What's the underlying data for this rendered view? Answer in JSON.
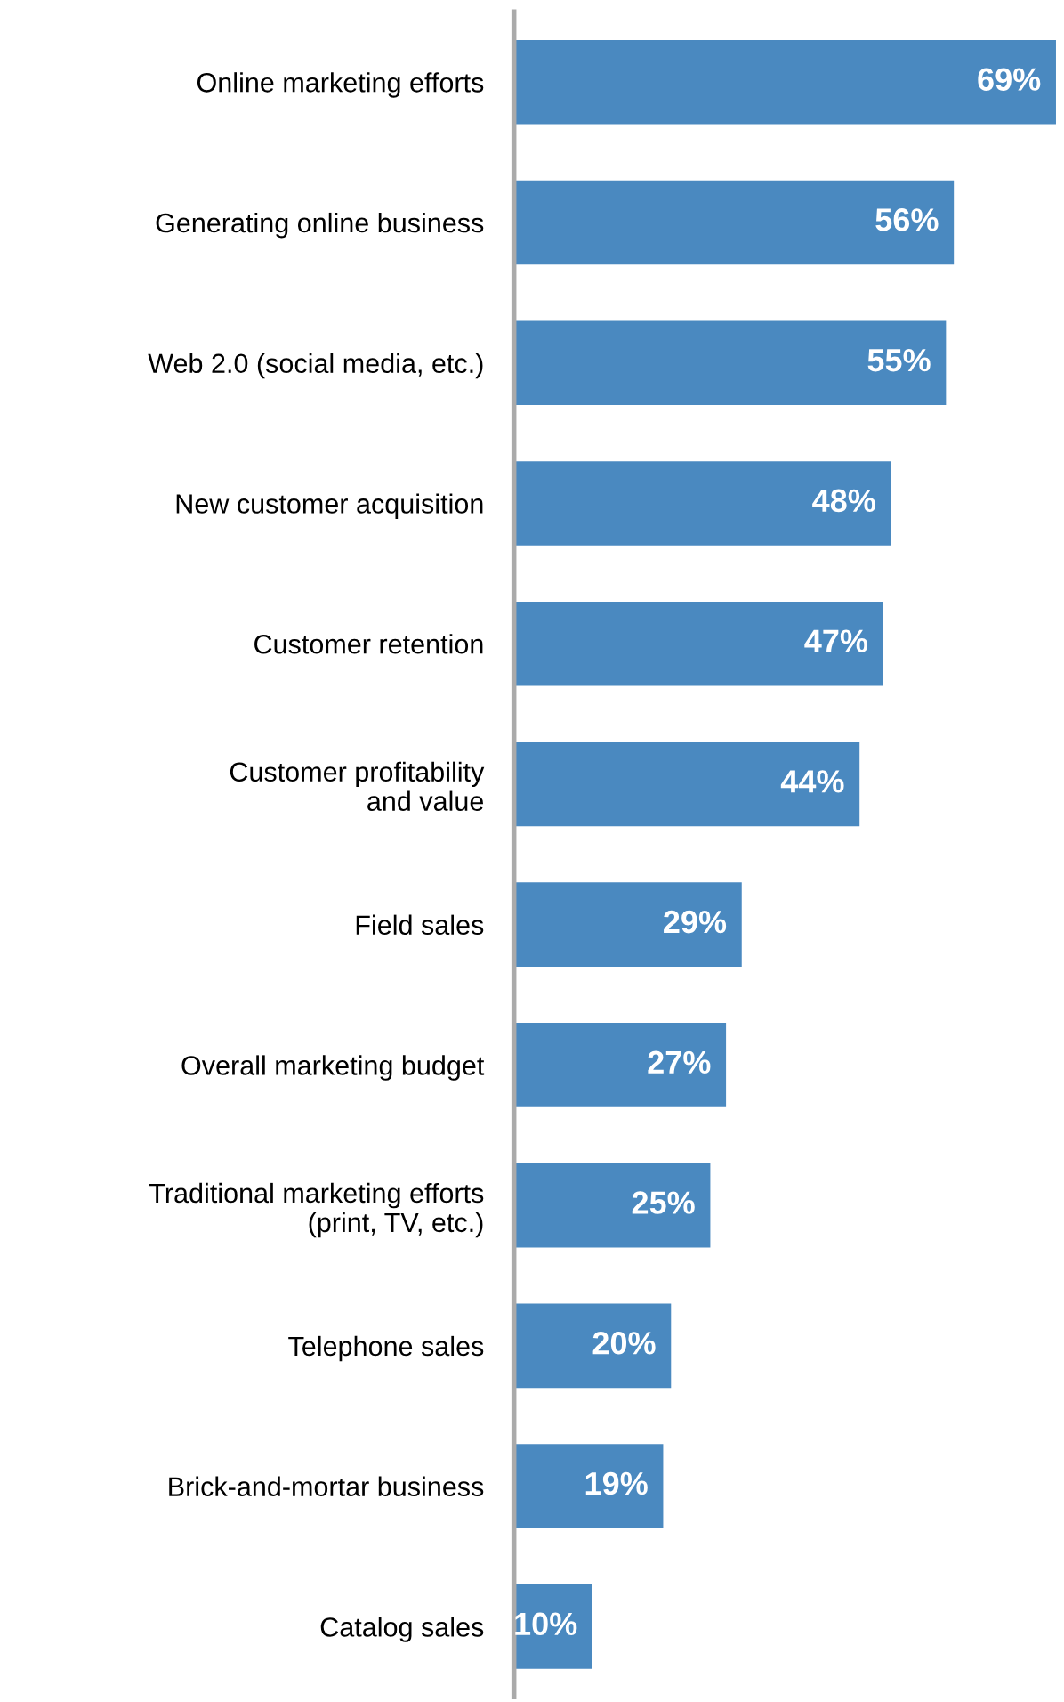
{
  "chart_data": {
    "type": "bar",
    "orientation": "horizontal",
    "categories": [
      "Online marketing efforts",
      "Generating online business",
      "Web 2.0 (social media, etc.)",
      "New customer acquisition",
      "Customer retention",
      "Customer profitability\nand value",
      "Field sales",
      "Overall marketing budget",
      "Traditional marketing efforts\n(print, TV, etc.)",
      "Telephone sales",
      "Brick-and-mortar business",
      "Catalog sales"
    ],
    "values": [
      69,
      56,
      55,
      48,
      47,
      44,
      29,
      27,
      25,
      20,
      19,
      10
    ],
    "value_labels": [
      "69%",
      "56%",
      "55%",
      "48%",
      "47%",
      "44%",
      "29%",
      "27%",
      "25%",
      "20%",
      "19%",
      "10%"
    ],
    "color": "#4a89c0",
    "grid": false,
    "legend": false
  }
}
